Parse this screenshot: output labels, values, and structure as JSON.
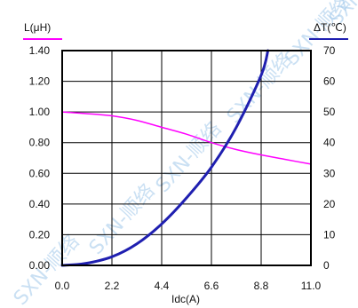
{
  "chart_data": {
    "type": "line",
    "left_axis": {
      "label": "L(μH)",
      "ticks": [
        "1.40",
        "1.20",
        "1.00",
        "0.80",
        "0.60",
        "0.40",
        "0.20",
        "0.00"
      ],
      "ylim": [
        0,
        1.4
      ],
      "label_underline_color": "#ff00ff"
    },
    "right_axis": {
      "label": "ΔT(℃)",
      "ticks": [
        "70",
        "60",
        "50",
        "40",
        "30",
        "20",
        "10",
        "0"
      ],
      "ylim": [
        0,
        70
      ],
      "label_underline_color": "#1f1fb0"
    },
    "x_axis": {
      "label": "Idc(A)",
      "ticks": [
        "0.0",
        "2.2",
        "4.4",
        "6.6",
        "8.8",
        "11.0"
      ],
      "xlim": [
        0,
        11
      ]
    },
    "grid": true,
    "series": [
      {
        "axis": "left",
        "color": "#ff00ff",
        "x": [
          0,
          1,
          2.2,
          3.3,
          4.4,
          5.5,
          6.6,
          7.7,
          8.8,
          9.9,
          11
        ],
        "values": [
          1.0,
          0.99,
          0.975,
          0.945,
          0.9,
          0.855,
          0.8,
          0.755,
          0.72,
          0.69,
          0.66
        ]
      },
      {
        "axis": "right",
        "color": "#1f1fb0",
        "x": [
          0,
          1,
          2.2,
          3.3,
          4.4,
          5.5,
          6.6,
          7.7,
          8.8,
          9.1
        ],
        "values": [
          0,
          0.6,
          2.8,
          7,
          13.5,
          22,
          32,
          45,
          62,
          70
        ]
      }
    ]
  },
  "watermarks": [
    "SXN-顺络",
    "SXN-顺络",
    "SXN-顺络",
    "SXN-顺络",
    "SXN-顺络",
    "SXN-顺络"
  ]
}
